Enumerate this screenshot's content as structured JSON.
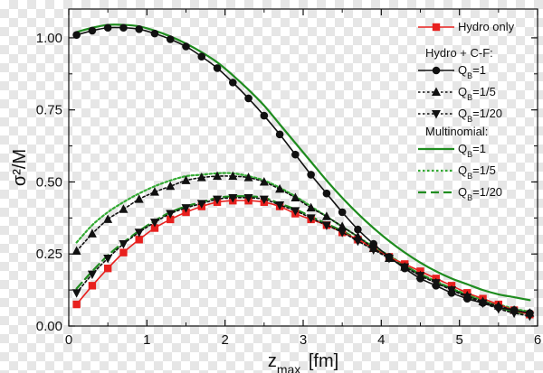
{
  "chart_data": {
    "type": "line",
    "title": "",
    "xlabel": "z_max [fm]",
    "ylabel": "σ²/M",
    "xlim": [
      0,
      6
    ],
    "ylim": [
      0,
      1.1
    ],
    "x_ticks": [
      0,
      1,
      2,
      3,
      4,
      5,
      6
    ],
    "x_tick_labels": [
      "0",
      "1",
      "2",
      "3",
      "4",
      "5",
      "6"
    ],
    "y_ticks": [
      0,
      0.25,
      0.5,
      0.75,
      1.0
    ],
    "y_tick_labels": [
      "0.00",
      "0.25",
      "0.50",
      "0.75",
      "1.00"
    ],
    "legend_position": "top-right",
    "legend": {
      "groups": [
        {
          "title": "",
          "entries": [
            "Hydro only"
          ]
        },
        {
          "title": "Hydro + C-F:",
          "entries": [
            "Q_B=1",
            "Q_B=1/5",
            "Q_B=1/20"
          ]
        },
        {
          "title": "Multinomial:",
          "entries": [
            "Q_B=1",
            "Q_B=1/5",
            "Q_B=1/20"
          ]
        }
      ]
    },
    "series": [
      {
        "name": "Hydro only",
        "color": "#e8201e",
        "marker": "square",
        "line": "solid",
        "x": [
          0.1,
          0.3,
          0.5,
          0.7,
          0.9,
          1.1,
          1.3,
          1.5,
          1.7,
          1.9,
          2.1,
          2.3,
          2.5,
          2.7,
          2.9,
          3.1,
          3.3,
          3.5,
          3.7,
          3.9,
          4.1,
          4.3,
          4.5,
          4.7,
          4.9,
          5.1,
          5.3,
          5.5,
          5.7,
          5.9
        ],
        "y": [
          0.075,
          0.14,
          0.2,
          0.255,
          0.3,
          0.34,
          0.37,
          0.395,
          0.415,
          0.43,
          0.435,
          0.435,
          0.43,
          0.415,
          0.39,
          0.37,
          0.35,
          0.325,
          0.3,
          0.27,
          0.24,
          0.215,
          0.19,
          0.165,
          0.14,
          0.115,
          0.095,
          0.075,
          0.055,
          0.04
        ]
      },
      {
        "name": "Hydro + C-F: Q_B=1",
        "color": "#111111",
        "marker": "circle",
        "line": "solid",
        "x": [
          0.1,
          0.3,
          0.5,
          0.7,
          0.9,
          1.1,
          1.3,
          1.5,
          1.7,
          1.9,
          2.1,
          2.3,
          2.5,
          2.7,
          2.9,
          3.1,
          3.3,
          3.5,
          3.7,
          3.9,
          4.1,
          4.3,
          4.5,
          4.7,
          4.9,
          5.1,
          5.3,
          5.5,
          5.7,
          5.9
        ],
        "y": [
          1.01,
          1.025,
          1.035,
          1.035,
          1.03,
          1.015,
          0.995,
          0.97,
          0.935,
          0.895,
          0.845,
          0.79,
          0.73,
          0.665,
          0.595,
          0.525,
          0.46,
          0.395,
          0.335,
          0.285,
          0.24,
          0.2,
          0.165,
          0.14,
          0.115,
          0.095,
          0.08,
          0.065,
          0.055,
          0.045
        ]
      },
      {
        "name": "Hydro + C-F: Q_B=1/5",
        "color": "#111111",
        "marker": "triangle-up",
        "line": "dotted",
        "x": [
          0.1,
          0.3,
          0.5,
          0.7,
          0.9,
          1.1,
          1.3,
          1.5,
          1.7,
          1.9,
          2.1,
          2.3,
          2.5,
          2.7,
          2.9,
          3.1,
          3.3,
          3.5,
          3.7,
          3.9,
          4.1,
          4.3,
          4.5,
          4.7,
          4.9,
          5.1,
          5.3,
          5.5,
          5.7,
          5.9
        ],
        "y": [
          0.26,
          0.32,
          0.37,
          0.405,
          0.44,
          0.465,
          0.485,
          0.505,
          0.515,
          0.52,
          0.52,
          0.515,
          0.5,
          0.475,
          0.445,
          0.41,
          0.38,
          0.345,
          0.31,
          0.27,
          0.235,
          0.205,
          0.175,
          0.15,
          0.125,
          0.105,
          0.085,
          0.07,
          0.055,
          0.045
        ]
      },
      {
        "name": "Hydro + C-F: Q_B=1/20",
        "color": "#111111",
        "marker": "triangle-down",
        "line": "dotted",
        "x": [
          0.1,
          0.3,
          0.5,
          0.7,
          0.9,
          1.1,
          1.3,
          1.5,
          1.7,
          1.9,
          2.1,
          2.3,
          2.5,
          2.7,
          2.9,
          3.1,
          3.3,
          3.5,
          3.7,
          3.9,
          4.1,
          4.3,
          4.5,
          4.7,
          4.9,
          5.1,
          5.3,
          5.5,
          5.7,
          5.9
        ],
        "y": [
          0.115,
          0.18,
          0.235,
          0.285,
          0.325,
          0.36,
          0.39,
          0.41,
          0.425,
          0.44,
          0.445,
          0.445,
          0.44,
          0.42,
          0.4,
          0.375,
          0.35,
          0.325,
          0.295,
          0.265,
          0.235,
          0.205,
          0.175,
          0.15,
          0.125,
          0.1,
          0.08,
          0.06,
          0.045,
          0.035
        ]
      },
      {
        "name": "Multinomial: Q_B=1",
        "color": "#1f8c1f",
        "marker": "none",
        "line": "solid",
        "x": [
          0.1,
          0.3,
          0.5,
          0.7,
          0.9,
          1.1,
          1.3,
          1.5,
          1.7,
          1.9,
          2.1,
          2.3,
          2.5,
          2.7,
          2.9,
          3.1,
          3.3,
          3.5,
          3.7,
          3.9,
          4.1,
          4.3,
          4.5,
          4.7,
          4.9,
          5.1,
          5.3,
          5.5,
          5.7,
          5.9
        ],
        "y": [
          1.02,
          1.035,
          1.045,
          1.045,
          1.04,
          1.025,
          1.005,
          0.98,
          0.95,
          0.915,
          0.87,
          0.82,
          0.765,
          0.7,
          0.635,
          0.57,
          0.505,
          0.445,
          0.39,
          0.34,
          0.295,
          0.255,
          0.22,
          0.19,
          0.165,
          0.145,
          0.125,
          0.11,
          0.1,
          0.09
        ]
      },
      {
        "name": "Multinomial: Q_B=1/5",
        "color": "#33aa33",
        "marker": "none",
        "line": "dotted",
        "x": [
          0.1,
          0.3,
          0.5,
          0.7,
          0.9,
          1.1,
          1.3,
          1.5,
          1.7,
          1.9,
          2.1,
          2.3,
          2.5,
          2.7,
          2.9,
          3.1,
          3.3,
          3.5,
          3.7,
          3.9,
          4.1,
          4.3,
          4.5,
          4.7,
          4.9,
          5.1,
          5.3,
          5.5,
          5.7,
          5.9
        ],
        "y": [
          0.29,
          0.35,
          0.395,
          0.43,
          0.46,
          0.485,
          0.505,
          0.52,
          0.525,
          0.53,
          0.53,
          0.52,
          0.505,
          0.48,
          0.45,
          0.415,
          0.38,
          0.345,
          0.31,
          0.275,
          0.245,
          0.21,
          0.18,
          0.155,
          0.13,
          0.11,
          0.09,
          0.075,
          0.06,
          0.05
        ]
      },
      {
        "name": "Multinomial: Q_B=1/20",
        "color": "#1f8c1f",
        "marker": "none",
        "line": "dashed",
        "x": [
          0.1,
          0.3,
          0.5,
          0.7,
          0.9,
          1.1,
          1.3,
          1.5,
          1.7,
          1.9,
          2.1,
          2.3,
          2.5,
          2.7,
          2.9,
          3.1,
          3.3,
          3.5,
          3.7,
          3.9,
          4.1,
          4.3,
          4.5,
          4.7,
          4.9,
          5.1,
          5.3,
          5.5,
          5.7,
          5.9
        ],
        "y": [
          0.13,
          0.19,
          0.245,
          0.29,
          0.33,
          0.365,
          0.395,
          0.415,
          0.43,
          0.445,
          0.45,
          0.45,
          0.445,
          0.425,
          0.405,
          0.38,
          0.355,
          0.33,
          0.3,
          0.27,
          0.24,
          0.21,
          0.18,
          0.155,
          0.13,
          0.105,
          0.085,
          0.065,
          0.05,
          0.04
        ]
      }
    ]
  }
}
